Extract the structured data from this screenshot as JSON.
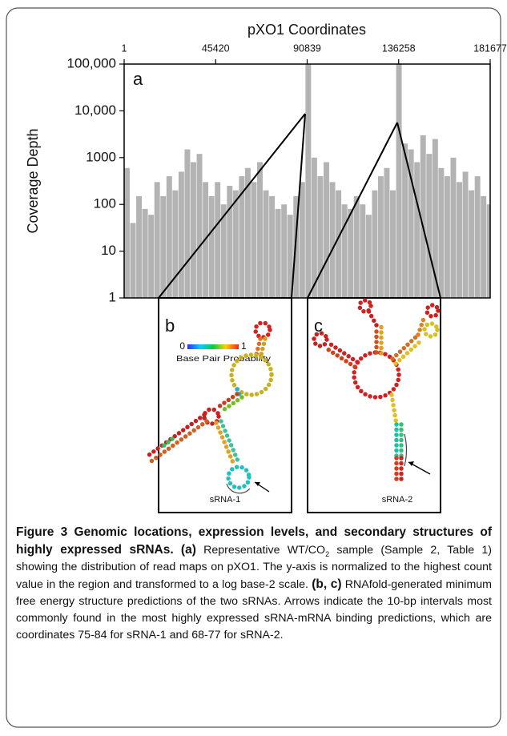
{
  "chart_data": {
    "type": "histogram",
    "x_label": "pXO1 Coordinates",
    "y_label": "Coverage Depth",
    "bins": [
      1,
      3000,
      6000,
      9000,
      12000,
      15000,
      18000,
      21000,
      24000,
      27000,
      30000,
      33000,
      36000,
      39000,
      42000,
      45000,
      48000,
      51000,
      54000,
      57000,
      60000,
      63000,
      66000,
      69000,
      72000,
      75000,
      78000,
      81000,
      84000,
      87000,
      90000,
      93000,
      96000,
      99000,
      102000,
      105000,
      108000,
      111000,
      114000,
      117000,
      120000,
      123000,
      126000,
      129000,
      132000,
      135000,
      138000,
      141000,
      144000,
      147000,
      150000,
      153000,
      156000,
      159000,
      162000,
      165000,
      168000,
      171000,
      174000,
      177000,
      180000,
      181677
    ],
    "values": [
      600,
      40,
      150,
      80,
      60,
      300,
      150,
      400,
      200,
      500,
      1500,
      800,
      1200,
      300,
      150,
      300,
      100,
      250,
      200,
      400,
      600,
      300,
      800,
      200,
      150,
      80,
      100,
      60,
      150,
      300,
      100000,
      1000,
      400,
      800,
      300,
      200,
      100,
      80,
      150,
      100,
      60,
      200,
      400,
      600,
      200,
      100000,
      2000,
      1500,
      800,
      3000,
      1200,
      2500,
      600,
      400,
      1000,
      300,
      500,
      200,
      400,
      150,
      100
    ],
    "color": "#b3b3b3",
    "log_y": true,
    "x_axis_position": "top",
    "xlim": [
      1,
      181677
    ],
    "xticks": [
      1,
      45420,
      90839,
      136258,
      181677
    ],
    "ylim": [
      1,
      100000
    ],
    "yticks": [
      1,
      10,
      100,
      1000,
      {
        "value": 10000,
        "label": "10,000"
      },
      {
        "value": 100000,
        "label": "100,000"
      }
    ]
  },
  "panel_labels": [
    "a",
    "b",
    "c"
  ],
  "colorbar": {
    "min_label": "0",
    "max_label": "1",
    "title": "Base Pair Probability"
  },
  "structure_labels": [
    "sRNA-1",
    "sRNA-2"
  ],
  "caption": [
    {
      "text": "Figure 3 Genomic locations, expression levels, and secondary structures of highly expressed sRNAs.",
      "style": "bold"
    },
    {
      "text": " ",
      "style": "normal"
    },
    {
      "text": "(a)",
      "style": "bold"
    },
    {
      "text": " Representative WT/CO",
      "style": "normal"
    },
    {
      "text": "2",
      "style": "sub"
    },
    {
      "text": " sample (Sample 2, Table 1) showing the distribution of read maps on pXO1. The y-axis is normalized to the highest count value in the region and transformed to a log base-2 scale. ",
      "style": "normal"
    },
    {
      "text": "(b, c)",
      "style": "bold"
    },
    {
      "text": " RNAfold-generated minimum free energy structure predictions of the two sRNAs. Arrows indicate the 10-bp intervals most commonly found in the most highly expressed sRNA-mRNA binding predictions, which are coordinates 75-84 for sRNA-1 and 68-77 for sRNA-2.",
      "style": "normal"
    }
  ]
}
